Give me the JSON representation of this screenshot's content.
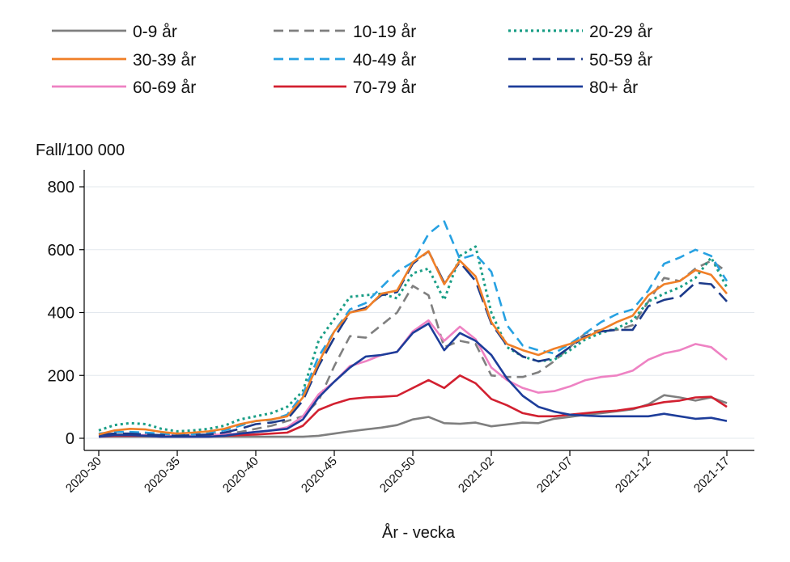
{
  "chart_data": {
    "type": "line",
    "ylabel": "Fall/100 000",
    "xlabel": "År - vecka",
    "ylim": [
      0,
      850
    ],
    "yticks": [
      0,
      200,
      400,
      600,
      800
    ],
    "grid": "horizontal",
    "legend_position": "top",
    "x_tick_labels": [
      "2020-30",
      "2020-35",
      "2020-40",
      "2020-45",
      "2020-50",
      "2021-02",
      "2021-07",
      "2021-12",
      "2021-17"
    ],
    "x_tick_index": [
      0,
      5,
      10,
      15,
      20,
      25,
      30,
      35,
      40
    ],
    "series": [
      {
        "name": "0-9 år",
        "color": "#7f7f7f",
        "dash": "solid",
        "values": [
          5,
          5,
          5,
          5,
          5,
          5,
          5,
          5,
          5,
          5,
          5,
          5,
          5,
          5,
          8,
          15,
          22,
          28,
          34,
          42,
          60,
          68,
          48,
          46,
          50,
          38,
          44,
          50,
          48,
          62,
          68,
          75,
          80,
          86,
          92,
          108,
          137,
          130,
          120,
          130,
          112
        ]
      },
      {
        "name": "10-19 år",
        "color": "#7f7f7f",
        "dash": "dashed",
        "values": [
          10,
          12,
          12,
          12,
          10,
          8,
          10,
          12,
          15,
          20,
          30,
          40,
          55,
          70,
          120,
          230,
          325,
          320,
          360,
          400,
          485,
          455,
          290,
          310,
          300,
          200,
          195,
          195,
          210,
          245,
          290,
          335,
          345,
          345,
          360,
          435,
          510,
          500,
          540,
          565,
          530
        ]
      },
      {
        "name": "20-29 år",
        "color": "#1a9e86",
        "dash": "dotted",
        "values": [
          25,
          42,
          48,
          45,
          30,
          22,
          25,
          30,
          40,
          60,
          70,
          80,
          100,
          150,
          310,
          380,
          450,
          455,
          460,
          445,
          525,
          540,
          440,
          580,
          610,
          400,
          290,
          260,
          245,
          250,
          280,
          315,
          335,
          350,
          375,
          435,
          460,
          480,
          510,
          575,
          480
        ]
      },
      {
        "name": "30-39 år",
        "color": "#f07f27",
        "dash": "solid",
        "values": [
          12,
          25,
          30,
          28,
          20,
          15,
          18,
          22,
          30,
          45,
          55,
          60,
          70,
          130,
          240,
          340,
          400,
          410,
          460,
          470,
          560,
          595,
          490,
          565,
          515,
          370,
          300,
          280,
          265,
          285,
          300,
          320,
          345,
          370,
          390,
          455,
          490,
          500,
          535,
          520,
          460
        ]
      },
      {
        "name": "40-49 år",
        "color": "#27a1e2",
        "dash": "dashed",
        "values": [
          15,
          20,
          20,
          18,
          15,
          10,
          12,
          18,
          25,
          40,
          55,
          58,
          75,
          140,
          260,
          340,
          410,
          430,
          480,
          530,
          560,
          650,
          690,
          570,
          585,
          530,
          360,
          295,
          280,
          270,
          300,
          335,
          370,
          395,
          410,
          470,
          555,
          575,
          600,
          580,
          500
        ]
      },
      {
        "name": "50-59 år",
        "color": "#1c3a8a",
        "dash": "longdash",
        "values": [
          12,
          15,
          15,
          12,
          10,
          8,
          10,
          12,
          18,
          30,
          45,
          50,
          60,
          120,
          230,
          320,
          400,
          415,
          455,
          465,
          555,
          595,
          495,
          560,
          500,
          365,
          295,
          260,
          245,
          255,
          290,
          325,
          340,
          345,
          345,
          420,
          440,
          450,
          495,
          490,
          435
        ]
      },
      {
        "name": "60-69 år",
        "color": "#ee82c3",
        "dash": "solid",
        "values": [
          8,
          10,
          10,
          10,
          8,
          8,
          8,
          10,
          12,
          15,
          20,
          25,
          35,
          70,
          140,
          180,
          230,
          245,
          265,
          275,
          340,
          375,
          310,
          355,
          315,
          225,
          185,
          160,
          145,
          150,
          165,
          185,
          195,
          200,
          215,
          250,
          270,
          280,
          300,
          290,
          250
        ]
      },
      {
        "name": "70-79 år",
        "color": "#d22030",
        "dash": "solid",
        "values": [
          5,
          8,
          8,
          8,
          5,
          5,
          5,
          5,
          8,
          10,
          12,
          15,
          18,
          40,
          90,
          110,
          125,
          130,
          132,
          135,
          160,
          185,
          160,
          200,
          175,
          125,
          105,
          80,
          70,
          70,
          75,
          80,
          85,
          88,
          95,
          105,
          115,
          120,
          130,
          132,
          100
        ]
      },
      {
        "name": "80+ år",
        "color": "#1d3d9a",
        "dash": "solid",
        "values": [
          5,
          10,
          10,
          8,
          5,
          5,
          5,
          5,
          8,
          15,
          20,
          25,
          30,
          60,
          130,
          180,
          225,
          260,
          265,
          275,
          335,
          365,
          280,
          335,
          310,
          265,
          190,
          135,
          100,
          85,
          75,
          72,
          70,
          70,
          70,
          70,
          78,
          70,
          62,
          65,
          55
        ]
      }
    ]
  }
}
